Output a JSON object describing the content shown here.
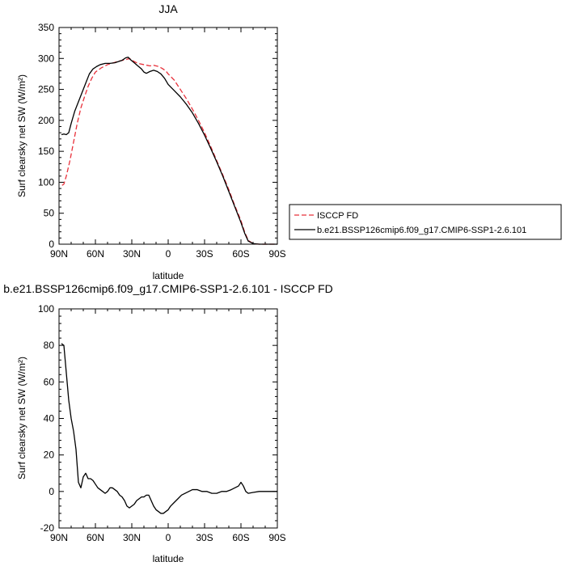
{
  "chart_data": [
    {
      "type": "line",
      "title": "JJA",
      "xlabel": "latitude",
      "ylabel": "Surf clearsky net SW (W/m²)",
      "xlim": [
        90,
        -90
      ],
      "ylim": [
        0,
        350
      ],
      "x_ticks": [
        90,
        60,
        30,
        0,
        -30,
        -60,
        -90
      ],
      "x_tick_labels": [
        "90N",
        "60N",
        "30N",
        "0",
        "30S",
        "60S",
        "90S"
      ],
      "y_ticks": [
        0,
        50,
        100,
        150,
        200,
        250,
        300,
        350
      ],
      "y_tick_labels": [
        "0",
        "50",
        "100",
        "150",
        "200",
        "250",
        "300",
        "350"
      ],
      "grid": false,
      "legend_position": "right",
      "series": [
        {
          "name": "ISCCP FD",
          "color": "#e8303a",
          "dash": "dashed",
          "points": [
            [
              87.5,
              95
            ],
            [
              86,
              97
            ],
            [
              84,
              110
            ],
            [
              81,
              135
            ],
            [
              78,
              165
            ],
            [
              75,
              195
            ],
            [
              72,
              220
            ],
            [
              69,
              238
            ],
            [
              66,
              255
            ],
            [
              63,
              268
            ],
            [
              60,
              278
            ],
            [
              55,
              285
            ],
            [
              50,
              290
            ],
            [
              45,
              293
            ],
            [
              40,
              296
            ],
            [
              35,
              298
            ],
            [
              32,
              300
            ],
            [
              28,
              295
            ],
            [
              25,
              292
            ],
            [
              20,
              290
            ],
            [
              15,
              288
            ],
            [
              12,
              289
            ],
            [
              8,
              287
            ],
            [
              5,
              284
            ],
            [
              2,
              280
            ],
            [
              0,
              275
            ],
            [
              -5,
              265
            ],
            [
              -10,
              250
            ],
            [
              -15,
              235
            ],
            [
              -20,
              218
            ],
            [
              -25,
              200
            ],
            [
              -30,
              180
            ],
            [
              -35,
              158
            ],
            [
              -40,
              135
            ],
            [
              -45,
              112
            ],
            [
              -50,
              88
            ],
            [
              -55,
              62
            ],
            [
              -60,
              38
            ],
            [
              -63,
              20
            ],
            [
              -66,
              6
            ],
            [
              -70,
              1
            ],
            [
              -75,
              0
            ],
            [
              -80,
              0
            ],
            [
              -85,
              0
            ],
            [
              -90,
              0
            ]
          ]
        },
        {
          "name": "b.e21.BSSP126cmip6.f09_g17.CMIP6-SSP1-2.6.101",
          "color": "#000000",
          "dash": "solid",
          "points": [
            [
              88,
              177
            ],
            [
              86,
              178
            ],
            [
              84,
              177
            ],
            [
              82,
              180
            ],
            [
              80,
              195
            ],
            [
              77,
              215
            ],
            [
              74,
              230
            ],
            [
              71,
              245
            ],
            [
              68,
              260
            ],
            [
              65,
              275
            ],
            [
              62,
              283
            ],
            [
              59,
              287
            ],
            [
              56,
              290
            ],
            [
              52,
              292
            ],
            [
              48,
              292
            ],
            [
              44,
              293
            ],
            [
              41,
              295
            ],
            [
              38,
              297
            ],
            [
              35,
              301
            ],
            [
              33,
              302
            ],
            [
              31,
              298
            ],
            [
              28,
              293
            ],
            [
              25,
              288
            ],
            [
              22,
              283
            ],
            [
              20,
              278
            ],
            [
              18,
              276
            ],
            [
              15,
              279
            ],
            [
              12,
              281
            ],
            [
              9,
              279
            ],
            [
              6,
              275
            ],
            [
              3,
              268
            ],
            [
              0,
              258
            ],
            [
              -5,
              248
            ],
            [
              -10,
              238
            ],
            [
              -15,
              226
            ],
            [
              -20,
              212
            ],
            [
              -25,
              195
            ],
            [
              -30,
              176
            ],
            [
              -35,
              155
            ],
            [
              -40,
              133
            ],
            [
              -45,
              110
            ],
            [
              -50,
              85
            ],
            [
              -55,
              60
            ],
            [
              -60,
              35
            ],
            [
              -63,
              18
            ],
            [
              -66,
              5
            ],
            [
              -70,
              1
            ],
            [
              -75,
              0
            ],
            [
              -80,
              0
            ],
            [
              -85,
              0
            ],
            [
              -90,
              0
            ]
          ]
        }
      ]
    },
    {
      "type": "line",
      "title": "b.e21.BSSP126cmip6.f09_g17.CMIP6-SSP1-2.6.101 - ISCCP FD",
      "xlabel": "latitude",
      "ylabel": "Surf clearsky net SW (W/m²)",
      "xlim": [
        90,
        -90
      ],
      "ylim": [
        -20,
        100
      ],
      "x_ticks": [
        90,
        60,
        30,
        0,
        -30,
        -60,
        -90
      ],
      "x_tick_labels": [
        "90N",
        "60N",
        "30N",
        "0",
        "30S",
        "60S",
        "90S"
      ],
      "y_ticks": [
        -20,
        0,
        20,
        40,
        60,
        80,
        100
      ],
      "y_tick_labels": [
        "-20",
        "0",
        "20",
        "40",
        "60",
        "80",
        "100"
      ],
      "grid": false,
      "series": [
        {
          "color": "#000000",
          "dash": "solid",
          "points": [
            [
              88,
              81
            ],
            [
              86,
              80
            ],
            [
              84,
              65
            ],
            [
              82,
              50
            ],
            [
              80,
              40
            ],
            [
              78,
              33
            ],
            [
              76,
              23
            ],
            [
              74,
              5
            ],
            [
              72,
              2
            ],
            [
              70,
              8
            ],
            [
              68,
              10
            ],
            [
              66,
              7
            ],
            [
              64,
              7
            ],
            [
              62,
              6
            ],
            [
              60,
              4
            ],
            [
              58,
              2
            ],
            [
              56,
              1
            ],
            [
              54,
              0
            ],
            [
              52,
              -1
            ],
            [
              50,
              0
            ],
            [
              48,
              2
            ],
            [
              46,
              2
            ],
            [
              44,
              1
            ],
            [
              42,
              0
            ],
            [
              40,
              -2
            ],
            [
              38,
              -3
            ],
            [
              36,
              -5
            ],
            [
              34,
              -8
            ],
            [
              32,
              -9
            ],
            [
              30,
              -8
            ],
            [
              28,
              -7
            ],
            [
              26,
              -5
            ],
            [
              24,
              -4
            ],
            [
              22,
              -3
            ],
            [
              20,
              -3
            ],
            [
              18,
              -2
            ],
            [
              16,
              -2
            ],
            [
              14,
              -5
            ],
            [
              12,
              -8
            ],
            [
              10,
              -10
            ],
            [
              8,
              -11
            ],
            [
              6,
              -12
            ],
            [
              4,
              -12
            ],
            [
              2,
              -11
            ],
            [
              0,
              -10
            ],
            [
              -2,
              -8
            ],
            [
              -5,
              -6
            ],
            [
              -8,
              -4
            ],
            [
              -11,
              -2
            ],
            [
              -14,
              -1
            ],
            [
              -17,
              0
            ],
            [
              -20,
              1
            ],
            [
              -24,
              1
            ],
            [
              -28,
              0
            ],
            [
              -32,
              0
            ],
            [
              -36,
              -1
            ],
            [
              -40,
              -1
            ],
            [
              -44,
              0
            ],
            [
              -48,
              0
            ],
            [
              -52,
              1
            ],
            [
              -55,
              2
            ],
            [
              -58,
              3
            ],
            [
              -60,
              5
            ],
            [
              -62,
              3
            ],
            [
              -64,
              0
            ],
            [
              -66,
              -1
            ],
            [
              -70,
              -0.5
            ],
            [
              -75,
              0
            ],
            [
              -80,
              0
            ],
            [
              -85,
              0
            ],
            [
              -90,
              0
            ]
          ]
        }
      ]
    }
  ]
}
